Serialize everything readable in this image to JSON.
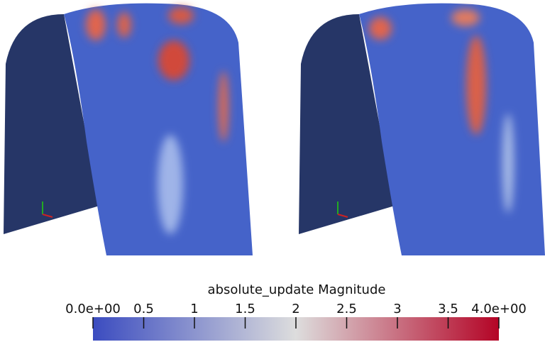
{
  "colorbar": {
    "title": "absolute_update Magnitude",
    "range": [
      0,
      4
    ],
    "ticks": [
      {
        "value": 0,
        "label": "0.0e+00"
      },
      0.5,
      1,
      1.5,
      2,
      2.5,
      3,
      3.5,
      {
        "value": 4,
        "label": "4.0e+00"
      }
    ],
    "colormap": [
      "#3b4cc0",
      "#dddddd",
      "#b40426"
    ]
  }
}
